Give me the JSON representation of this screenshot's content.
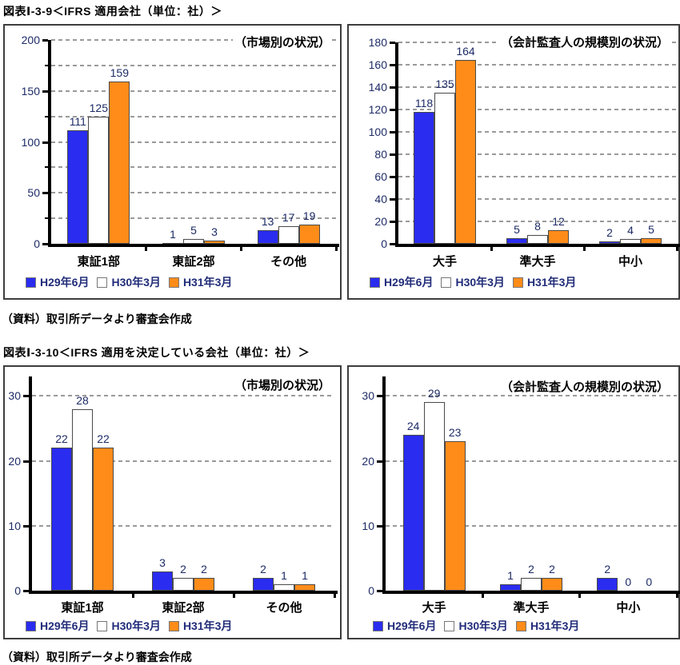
{
  "figures": [
    {
      "title": "図表Ⅰ-3-9＜IFRS 適用会社（単位：社）＞",
      "source": "（資料）取引所データより審査会作成"
    },
    {
      "title": "図表Ⅰ-3-10＜IFRS 適用を決定している会社（単位：社）＞",
      "source": "（資料）取引所データより審査会作成"
    }
  ],
  "colors": {
    "series": [
      "#2a2cf0",
      "#ffffff",
      "#ff8c19"
    ],
    "bar_border": "#4a4a4a",
    "grid": "#9a9a9a",
    "axis": "#000000",
    "number_text": "#1d2b66",
    "legend_text": "#222d7a"
  },
  "chart_data": [
    {
      "type": "bar",
      "figure": "図表Ⅰ-3-9＜IFRS 適用会社（単位：社）＞",
      "title": "（市場別の状況）",
      "categories": [
        "東証1部",
        "東証2部",
        "その他"
      ],
      "series": [
        {
          "name": "H29年6月",
          "values": [
            111,
            1,
            13
          ]
        },
        {
          "name": "H30年3月",
          "values": [
            125,
            5,
            17
          ]
        },
        {
          "name": "H31年3月",
          "values": [
            159,
            3,
            19
          ]
        }
      ],
      "ylim": [
        0,
        200
      ],
      "yaxis_top": 200,
      "ytick_step": 50,
      "grid_step": 25,
      "grid": true,
      "legend_position": "bottom-left"
    },
    {
      "type": "bar",
      "figure": "図表Ⅰ-3-9＜IFRS 適用会社（単位：社）＞",
      "title": "（会計監査人の規模別の状況）",
      "categories": [
        "大手",
        "準大手",
        "中小"
      ],
      "series": [
        {
          "name": "H29年6月",
          "values": [
            118,
            5,
            2
          ]
        },
        {
          "name": "H30年3月",
          "values": [
            135,
            8,
            4
          ]
        },
        {
          "name": "H31年3月",
          "values": [
            164,
            12,
            5
          ]
        }
      ],
      "ylim": [
        0,
        180
      ],
      "yaxis_top": 180,
      "ytick_step": 20,
      "grid_step": 20,
      "grid": true,
      "legend_position": "bottom-left"
    },
    {
      "type": "bar",
      "figure": "図表Ⅰ-3-10＜IFRS 適用を決定している会社（単位：社）＞",
      "title": "（市場別の状況）",
      "categories": [
        "東証1部",
        "東証2部",
        "その他"
      ],
      "series": [
        {
          "name": "H29年6月",
          "values": [
            22,
            3,
            2
          ]
        },
        {
          "name": "H30年3月",
          "values": [
            28,
            2,
            1
          ]
        },
        {
          "name": "H31年3月",
          "values": [
            22,
            2,
            1
          ]
        }
      ],
      "ylim": [
        0,
        30
      ],
      "yaxis_top": 33,
      "ytick_step": 10,
      "grid_step": 10,
      "grid": true,
      "legend_position": "bottom-left"
    },
    {
      "type": "bar",
      "figure": "図表Ⅰ-3-10＜IFRS 適用を決定している会社（単位：社）＞",
      "title": "（会計監査人の規模別の状況）",
      "categories": [
        "大手",
        "準大手",
        "中小"
      ],
      "series": [
        {
          "name": "H29年6月",
          "values": [
            24,
            1,
            2
          ]
        },
        {
          "name": "H30年3月",
          "values": [
            29,
            2,
            0
          ]
        },
        {
          "name": "H31年3月",
          "values": [
            23,
            2,
            0
          ]
        }
      ],
      "ylim": [
        0,
        30
      ],
      "yaxis_top": 33,
      "ytick_step": 10,
      "grid_step": 10,
      "grid": true,
      "legend_position": "bottom-left"
    }
  ]
}
